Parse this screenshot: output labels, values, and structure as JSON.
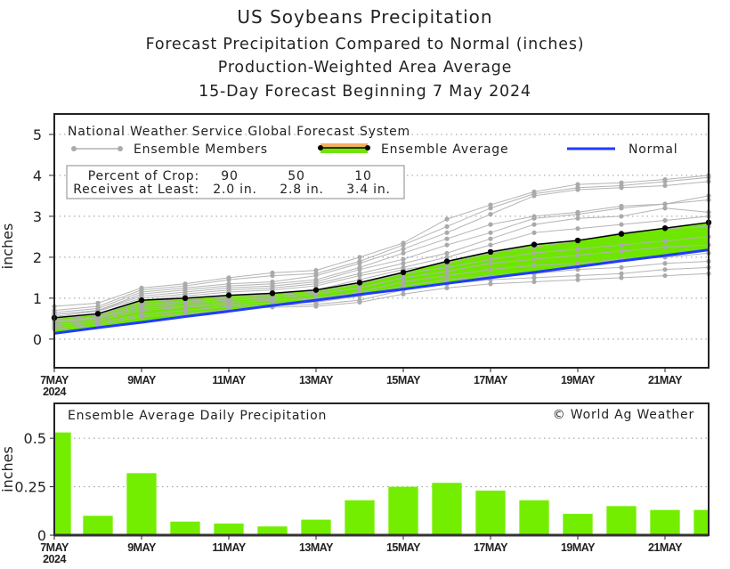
{
  "titles": {
    "line1": "US Soybeans Precipitation",
    "line2": "Forecast Precipitation Compared to Normal (inches)",
    "line3": "Production-Weighted Area Average",
    "line4": "15-Day Forecast Beginning 7 May 2024"
  },
  "chart_data": [
    {
      "type": "line",
      "ylabel": "inches",
      "ylim": [
        -0.7,
        5.5
      ],
      "yticks": [
        "0",
        "1",
        "2",
        "3",
        "4",
        "5"
      ],
      "grid": true,
      "x": [
        "7MAY",
        "8MAY",
        "9MAY",
        "10MAY",
        "11MAY",
        "12MAY",
        "13MAY",
        "14MAY",
        "15MAY",
        "16MAY",
        "17MAY",
        "18MAY",
        "19MAY",
        "20MAY",
        "21MAY",
        "22MAY"
      ],
      "xtick_labels": [
        "7MAY",
        "9MAY",
        "11MAY",
        "13MAY",
        "15MAY",
        "17MAY",
        "19MAY",
        "21MAY"
      ],
      "xtick_year": "2024",
      "legend": {
        "source": "National Weather Service Global Forecast System",
        "members": "Ensemble Members",
        "average": "Ensemble Average",
        "normal": "Normal",
        "placement": "top"
      },
      "crop_table": {
        "row1_label": "Percent of Crop:",
        "row2_label": "Receives at Least:",
        "percent": [
          "90",
          "50",
          "10"
        ],
        "amount": [
          "2.0 in.",
          "2.8 in.",
          "3.4 in."
        ]
      },
      "colors": {
        "members": "#b4b4b4",
        "average": "#000000",
        "fill": "#6ee600",
        "normal": "#1f3cff",
        "legend_band": "#f0b060"
      },
      "series": [
        {
          "name": "Ensemble Average",
          "values": [
            0.52,
            0.62,
            0.95,
            1.0,
            1.07,
            1.12,
            1.2,
            1.38,
            1.63,
            1.9,
            2.13,
            2.31,
            2.41,
            2.57,
            2.71,
            2.85
          ]
        },
        {
          "name": "Normal",
          "values": [
            0.14,
            0.28,
            0.41,
            0.55,
            0.68,
            0.82,
            0.95,
            1.09,
            1.22,
            1.36,
            1.5,
            1.63,
            1.77,
            1.91,
            2.04,
            2.18
          ]
        }
      ],
      "members": [
        [
          0.8,
          0.88,
          1.25,
          1.35,
          1.5,
          1.62,
          1.68,
          2.0,
          2.35,
          2.93,
          3.28,
          3.6,
          3.78,
          3.82,
          3.9,
          4.0
        ],
        [
          0.7,
          0.8,
          1.2,
          1.3,
          1.45,
          1.55,
          1.6,
          1.9,
          2.3,
          2.75,
          3.2,
          3.55,
          3.7,
          3.75,
          3.85,
          3.95
        ],
        [
          0.65,
          0.75,
          1.15,
          1.25,
          1.35,
          1.4,
          1.55,
          1.85,
          2.2,
          2.6,
          3.05,
          3.5,
          3.65,
          3.7,
          3.75,
          3.85
        ],
        [
          0.6,
          0.7,
          1.1,
          1.2,
          1.3,
          1.35,
          1.45,
          1.75,
          2.1,
          2.45,
          2.8,
          3.0,
          3.1,
          3.25,
          3.3,
          3.5
        ],
        [
          0.6,
          0.7,
          1.05,
          1.15,
          1.25,
          1.3,
          1.4,
          1.7,
          1.95,
          2.3,
          2.6,
          2.95,
          3.05,
          3.2,
          3.3,
          3.4
        ],
        [
          0.55,
          0.68,
          1.0,
          1.1,
          1.2,
          1.25,
          1.35,
          1.6,
          1.85,
          2.1,
          2.45,
          2.8,
          2.95,
          3.0,
          3.2,
          3.1
        ],
        [
          0.5,
          0.62,
          0.95,
          1.05,
          1.15,
          1.2,
          1.3,
          1.55,
          1.75,
          2.0,
          2.3,
          2.6,
          2.7,
          2.8,
          2.9,
          3.0
        ],
        [
          0.5,
          0.6,
          0.9,
          0.98,
          1.05,
          1.1,
          1.2,
          1.45,
          1.7,
          1.85,
          2.1,
          2.25,
          2.4,
          2.6,
          2.7,
          2.75
        ],
        [
          0.45,
          0.55,
          0.85,
          0.92,
          1.0,
          1.05,
          1.15,
          1.35,
          1.6,
          1.75,
          1.95,
          2.1,
          2.2,
          2.3,
          2.4,
          2.5
        ],
        [
          0.42,
          0.52,
          0.8,
          0.88,
          0.95,
          1.0,
          1.1,
          1.25,
          1.5,
          1.65,
          1.85,
          1.95,
          2.05,
          2.15,
          2.25,
          2.3
        ],
        [
          0.4,
          0.5,
          0.75,
          0.82,
          0.9,
          0.95,
          1.0,
          1.15,
          1.4,
          1.55,
          1.7,
          1.8,
          1.85,
          1.95,
          2.0,
          2.1
        ],
        [
          0.35,
          0.45,
          0.7,
          0.78,
          0.85,
          0.88,
          0.9,
          1.05,
          1.3,
          1.45,
          1.55,
          1.6,
          1.7,
          1.75,
          1.85,
          1.9
        ],
        [
          0.3,
          0.4,
          0.6,
          0.7,
          0.8,
          0.82,
          0.85,
          0.95,
          1.2,
          1.35,
          1.45,
          1.5,
          1.55,
          1.6,
          1.7,
          1.75
        ],
        [
          0.25,
          0.35,
          0.55,
          0.62,
          0.72,
          0.78,
          0.8,
          0.9,
          1.1,
          1.25,
          1.35,
          1.4,
          1.45,
          1.5,
          1.55,
          1.6
        ]
      ]
    },
    {
      "type": "bar",
      "title": "Ensemble Average Daily Precipitation",
      "credit": "© World Ag Weather",
      "ylabel": "inches",
      "ylim": [
        0,
        0.68
      ],
      "yticks": [
        "0",
        "0.25",
        "0.5"
      ],
      "grid": true,
      "categories": [
        "7MAY",
        "8MAY",
        "9MAY",
        "10MAY",
        "11MAY",
        "12MAY",
        "13MAY",
        "14MAY",
        "15MAY",
        "16MAY",
        "17MAY",
        "18MAY",
        "19MAY",
        "20MAY",
        "21MAY",
        "22MAY"
      ],
      "xtick_labels": [
        "7MAY",
        "9MAY",
        "11MAY",
        "13MAY",
        "15MAY",
        "17MAY",
        "19MAY",
        "21MAY"
      ],
      "xtick_year": "2024",
      "values": [
        0.53,
        0.1,
        0.32,
        0.07,
        0.06,
        0.045,
        0.08,
        0.18,
        0.25,
        0.27,
        0.23,
        0.18,
        0.11,
        0.15,
        0.13,
        0.13
      ],
      "color": "#74ee00"
    }
  ]
}
